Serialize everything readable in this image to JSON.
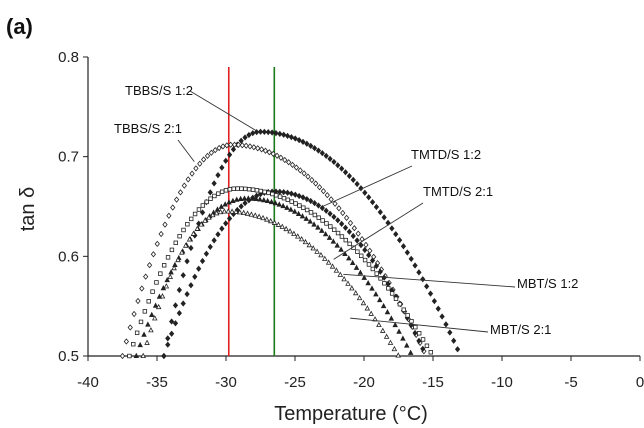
{
  "panel_label": "(a)",
  "chart_data": {
    "type": "scatter",
    "xlabel": "Temperature (°C)",
    "ylabel": "tan δ",
    "xlim": [
      -40,
      0
    ],
    "ylim": [
      0.5,
      0.8
    ],
    "x_ticks": [
      "-40",
      "-35",
      "-30",
      "-25",
      "-20",
      "-15",
      "-10",
      "-5",
      "0"
    ],
    "y_ticks": [
      "0.5",
      "0.6",
      "0.7",
      "0.8"
    ],
    "grid": false,
    "vertical_lines": [
      {
        "x": -29.8,
        "color": "#e02020"
      },
      {
        "x": -26.5,
        "color": "#1a7a1a"
      }
    ],
    "series": [
      {
        "name": "TBBS/S 1:2",
        "peak_x": -27.5,
        "peak_y": 0.725,
        "x_start": -34.5,
        "x_end": -13.0,
        "marker": "filled-diamond"
      },
      {
        "name": "TBBS/S 2:1",
        "peak_x": -29.5,
        "peak_y": 0.712,
        "x_start": -37.5,
        "x_end": -15.5,
        "marker": "open-diamond"
      },
      {
        "name": "TMTD/S 1:2",
        "peak_x": -26.5,
        "peak_y": 0.665,
        "x_start": -34.5,
        "x_end": -15.5,
        "marker": "filled-diamond"
      },
      {
        "name": "TMTD/S 2:1",
        "peak_x": -29.2,
        "peak_y": 0.668,
        "x_start": -37.0,
        "x_end": -15.0,
        "marker": "open-square"
      },
      {
        "name": "MBT/S 1:2",
        "peak_x": -28.5,
        "peak_y": 0.658,
        "x_start": -36.5,
        "x_end": -16.5,
        "marker": "filled-triangle"
      },
      {
        "name": "MBT/S 2:1",
        "peak_x": -30.0,
        "peak_y": 0.645,
        "x_start": -36.0,
        "x_end": -17.5,
        "marker": "open-triangle"
      }
    ],
    "annotations": [
      {
        "text": "TBBS/S 1:2",
        "arrow_to": [
          -27.8,
          0.726
        ]
      },
      {
        "text": "TBBS/S 2:1",
        "arrow_to": [
          -32.3,
          0.695
        ]
      },
      {
        "text": "TMTD/S 1:2",
        "arrow_to": [
          -23.0,
          0.65
        ]
      },
      {
        "text": "TMTD/S 2:1",
        "arrow_to": [
          -22.2,
          0.597
        ]
      },
      {
        "text": "MBT/S 1:2",
        "arrow_to": [
          -21.5,
          0.582
        ]
      },
      {
        "text": "MBT/S 2:1",
        "arrow_to": [
          -21.0,
          0.538
        ]
      }
    ]
  }
}
